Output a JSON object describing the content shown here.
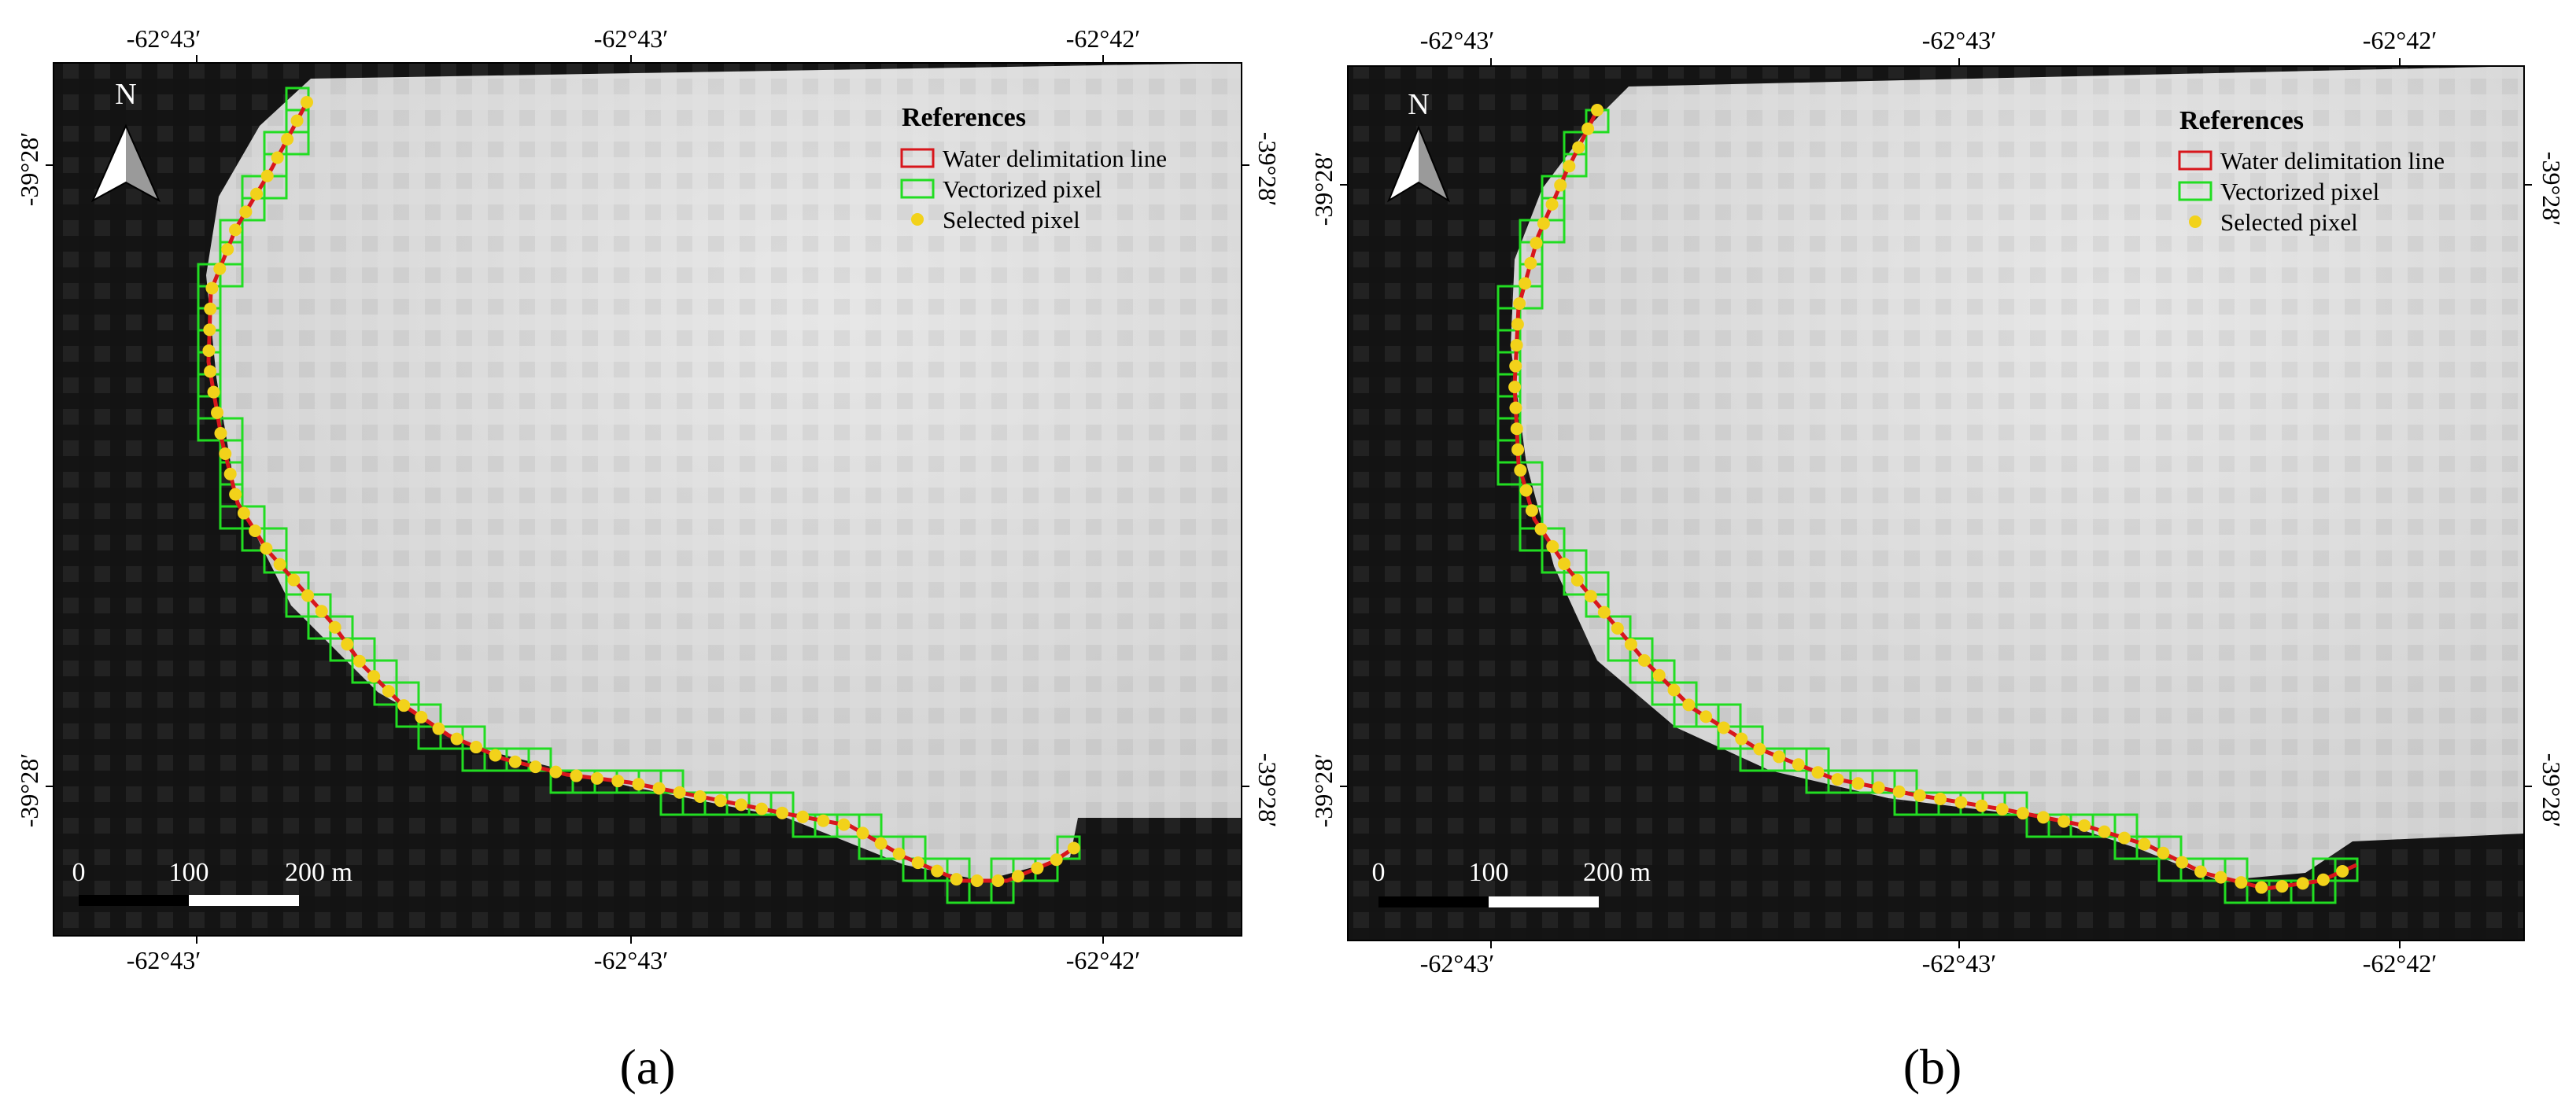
{
  "panels": [
    {
      "id": "a",
      "caption": "(a)",
      "top_ticks": [
        "-62°43′",
        "-62°43′",
        "-62°42′"
      ],
      "bottom_ticks": [
        "-62°43′",
        "-62°43′",
        "-62°42′"
      ],
      "left_ticks": [
        "-39°28′",
        "-39°28′"
      ],
      "right_ticks": [
        "-39°28′",
        "-39°28′"
      ],
      "north_label": "N",
      "scalebar": {
        "labels": [
          "0",
          "100",
          "200 m"
        ]
      },
      "legend": {
        "title": "References",
        "items": [
          {
            "label": "Water delimitation line",
            "symbol": "red-rect"
          },
          {
            "label": "Vectorized pixel",
            "symbol": "green-rect"
          },
          {
            "label": "Selected pixel",
            "symbol": "yellow-dot"
          }
        ]
      }
    },
    {
      "id": "b",
      "caption": "(b)",
      "top_ticks": [
        "-62°43′",
        "-62°43′",
        "-62°42′"
      ],
      "bottom_ticks": [
        "-62°43′",
        "-62°43′",
        "-62°42′"
      ],
      "left_ticks": [
        "-39°28′",
        "-39°28′"
      ],
      "right_ticks": [
        "-39°28′",
        "-39°28′"
      ],
      "north_label": "N",
      "scalebar": {
        "labels": [
          "0",
          "100",
          "200 m"
        ]
      },
      "legend": {
        "title": "References",
        "items": [
          {
            "label": "Water delimitation line",
            "symbol": "red-rect"
          },
          {
            "label": "Vectorized pixel",
            "symbol": "green-rect"
          },
          {
            "label": "Selected pixel",
            "symbol": "yellow-dot"
          }
        ]
      }
    }
  ],
  "colors": {
    "water": "#dcdcdc",
    "land": "#141414",
    "line": "#d8161c",
    "pixel": "#22dd22",
    "point": "#f2d21a"
  }
}
